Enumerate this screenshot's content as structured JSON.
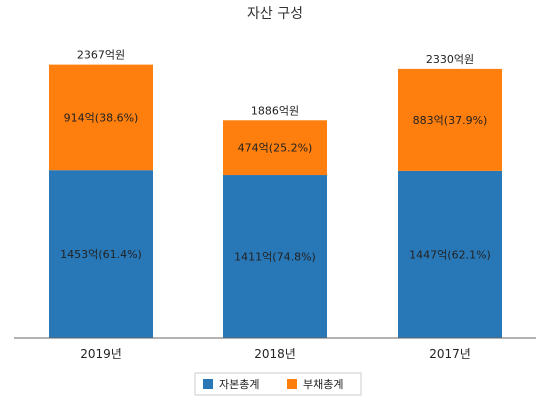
{
  "chart_data": {
    "type": "bar",
    "stacked": true,
    "title": "자산 구성",
    "categories": [
      "2019년",
      "2018년",
      "2017년"
    ],
    "series": [
      {
        "name": "자본총계",
        "color": "#2878b8",
        "values": [
          1453,
          1411,
          1447
        ],
        "labels": [
          "1453억(61.4%)",
          "1411억(74.8%)",
          "1447억(62.1%)"
        ]
      },
      {
        "name": "부채총계",
        "color": "#ff7f0e",
        "values": [
          914,
          474,
          883
        ],
        "labels": [
          "914억(38.6%)",
          "474억(25.2%)",
          "883억(37.9%)"
        ]
      }
    ],
    "totals": [
      2367,
      1886,
      2330
    ],
    "total_labels": [
      "2367억원",
      "1886억원",
      "2330억원"
    ],
    "legend_position": "bottom",
    "grid": false
  }
}
